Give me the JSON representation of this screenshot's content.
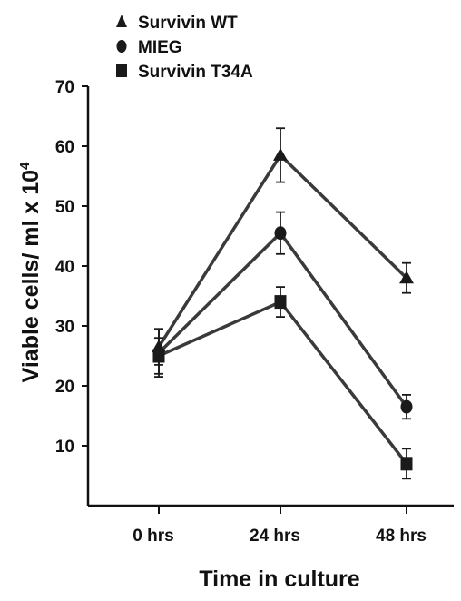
{
  "chart_data": {
    "type": "line",
    "title": "",
    "xlabel": "Time in culture",
    "ylabel": "Viable cells/ ml x 10",
    "ylabel_superscript": "4",
    "categories": [
      "0 hrs",
      "24 hrs",
      "48 hrs"
    ],
    "y_ticks": [
      "10",
      "20",
      "30",
      "40",
      "50",
      "60",
      "70"
    ],
    "ylim": [
      0,
      70
    ],
    "grid": false,
    "legend_position": "top-left",
    "series": [
      {
        "name": "Survivin WT",
        "marker": "triangle",
        "values": [
          26.5,
          58.5,
          38
        ],
        "error": [
          3,
          4.5,
          2.5
        ]
      },
      {
        "name": "MIEG",
        "marker": "circle",
        "values": [
          25.5,
          45.5,
          16.5
        ],
        "error": [
          4,
          3.5,
          2
        ]
      },
      {
        "name": "Survivin T34A",
        "marker": "square",
        "values": [
          25,
          34,
          7
        ],
        "error": [
          3,
          2.5,
          2.5
        ]
      }
    ],
    "colors": {
      "line": "#3a3a3a",
      "marker": "#1a1a1a",
      "axis": "#111111",
      "text": "#111111"
    }
  }
}
